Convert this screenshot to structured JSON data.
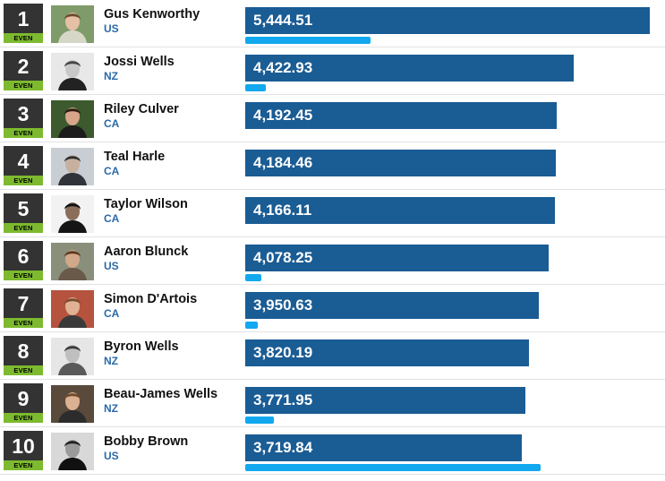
{
  "colors": {
    "rank_box": "#333333",
    "badge": "#7dba2f",
    "points_bar": "#1a5c94",
    "secondary_bar": "#12a8ef",
    "country_text": "#2a6aa8"
  },
  "scale_max_points": 5444.51,
  "athletes": [
    {
      "rank": "1",
      "change": "EVEN",
      "name": "Gus Kenworthy",
      "country": "US",
      "points": "5,444.51",
      "points_value": 5444.51,
      "secondary_fraction": 0.31,
      "photo": "headshot-photo"
    },
    {
      "rank": "2",
      "change": "EVEN",
      "name": "Jossi Wells",
      "country": "NZ",
      "points": "4,422.93",
      "points_value": 4422.93,
      "secondary_fraction": 0.05,
      "photo": "headshot-photo"
    },
    {
      "rank": "3",
      "change": "EVEN",
      "name": "Riley Culver",
      "country": "CA",
      "points": "4,192.45",
      "points_value": 4192.45,
      "secondary_fraction": 0,
      "photo": "headshot-photo"
    },
    {
      "rank": "4",
      "change": "EVEN",
      "name": "Teal Harle",
      "country": "CA",
      "points": "4,184.46",
      "points_value": 4184.46,
      "secondary_fraction": 0,
      "photo": "headshot-photo"
    },
    {
      "rank": "5",
      "change": "EVEN",
      "name": "Taylor Wilson",
      "country": "CA",
      "points": "4,166.11",
      "points_value": 4166.11,
      "secondary_fraction": 0,
      "photo": "headshot-photo"
    },
    {
      "rank": "6",
      "change": "EVEN",
      "name": "Aaron Blunck",
      "country": "US",
      "points": "4,078.25",
      "points_value": 4078.25,
      "secondary_fraction": 0.04,
      "photo": "headshot-photo"
    },
    {
      "rank": "7",
      "change": "EVEN",
      "name": "Simon D'Artois",
      "country": "CA",
      "points": "3,950.63",
      "points_value": 3950.63,
      "secondary_fraction": 0.03,
      "photo": "headshot-photo"
    },
    {
      "rank": "8",
      "change": "EVEN",
      "name": "Byron Wells",
      "country": "NZ",
      "points": "3,820.19",
      "points_value": 3820.19,
      "secondary_fraction": 0,
      "photo": "headshot-photo"
    },
    {
      "rank": "9",
      "change": "EVEN",
      "name": "Beau-James Wells",
      "country": "NZ",
      "points": "3,771.95",
      "points_value": 3771.95,
      "secondary_fraction": 0.07,
      "photo": "headshot-photo"
    },
    {
      "rank": "10",
      "change": "EVEN",
      "name": "Bobby Brown",
      "country": "US",
      "points": "3,719.84",
      "points_value": 3719.84,
      "secondary_fraction": 0.73,
      "photo": "headshot-photo"
    }
  ]
}
